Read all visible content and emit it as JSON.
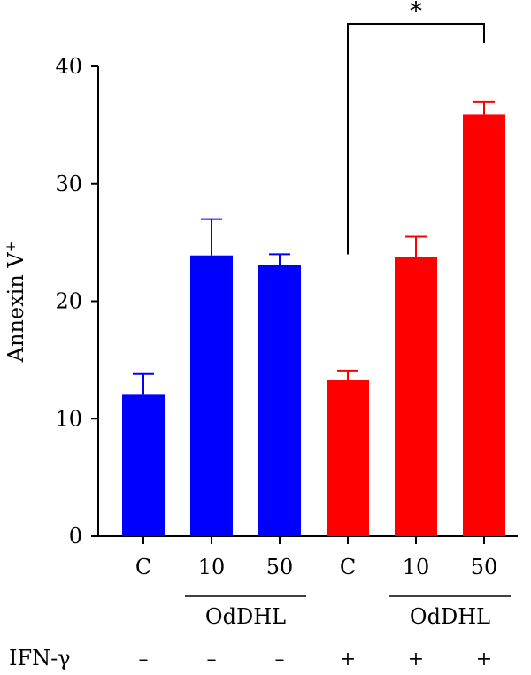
{
  "chart_data": {
    "type": "bar",
    "ylabel": "Annexin V",
    "ylabel_sup": "+",
    "ylim": [
      0,
      40
    ],
    "yticks": [
      "0",
      "10",
      "20",
      "30",
      "40"
    ],
    "categories": [
      "C",
      "10",
      "50",
      "C",
      "10",
      "50"
    ],
    "values": [
      12.1,
      23.9,
      23.1,
      13.3,
      23.8,
      35.9
    ],
    "errors": [
      1.7,
      3.1,
      0.9,
      0.8,
      1.7,
      1.1
    ],
    "bar_colors": [
      "#0000ff",
      "#0000ff",
      "#0000ff",
      "#ff0000",
      "#ff0000",
      "#ff0000"
    ],
    "group_labels": [
      "OdDHL",
      "OdDHL"
    ],
    "row_label": "IFN-γ",
    "row_values": [
      "–",
      "–",
      "–",
      "+",
      "+",
      "+"
    ],
    "significance": {
      "label": "*",
      "from_index": 3,
      "to_index": 5
    }
  }
}
